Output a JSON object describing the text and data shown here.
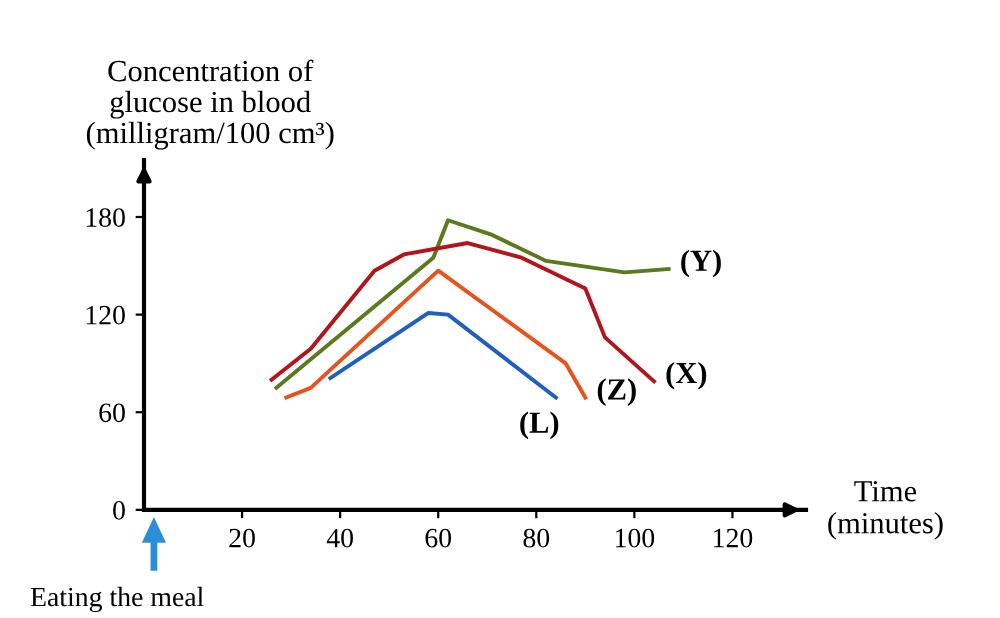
{
  "chart_data": {
    "type": "line",
    "ylabel": "Concentration of\nglucose in blood\n(milligram/100 cm³)",
    "xlabel": "Time\n(minutes)",
    "xlim": [
      0,
      135
    ],
    "xticks": [
      20,
      40,
      60,
      80,
      100,
      120
    ],
    "ylim": [
      0,
      215
    ],
    "yticks": [
      0,
      60,
      120,
      180
    ],
    "grid": false,
    "marker": "none",
    "line_style": "solid",
    "annotations": [
      "Eating the meal"
    ],
    "series": [
      {
        "name": "(Y)",
        "color": "#5a7a1e",
        "x": [
          27,
          59,
          62,
          71,
          82,
          98,
          107
        ],
        "values": [
          75,
          155,
          178,
          169,
          153,
          146,
          148
        ]
      },
      {
        "name": "(X)",
        "color": "#b3151b",
        "x": [
          26,
          34,
          47,
          53,
          66,
          77,
          90,
          94,
          104
        ],
        "values": [
          80,
          99,
          147,
          157,
          164,
          155,
          136,
          106,
          79
        ]
      },
      {
        "name": "(Z)",
        "color": "#e8521c",
        "x": [
          29,
          34,
          60,
          86,
          90
        ],
        "values": [
          69,
          75,
          147,
          90,
          69
        ]
      },
      {
        "name": "(L)",
        "color": "#1f5fbf",
        "x": [
          38,
          58,
          62,
          84
        ],
        "values": [
          81,
          121,
          120,
          69
        ]
      }
    ]
  }
}
